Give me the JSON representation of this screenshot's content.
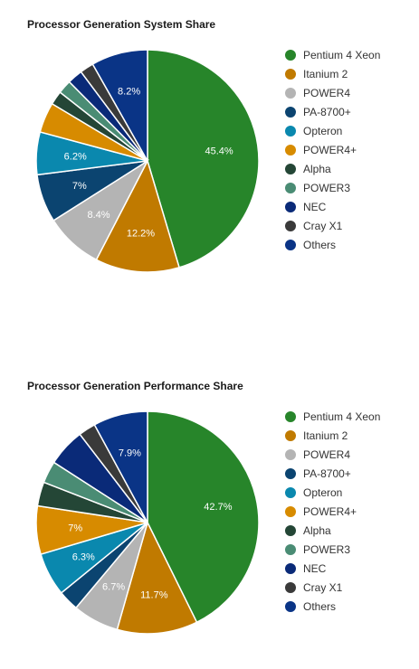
{
  "chart_data": [
    {
      "type": "pie",
      "title": "Processor Generation System Share",
      "legend_position": "right",
      "categories": [
        "Pentium 4 Xeon",
        "Itanium 2",
        "POWER4",
        "PA-8700+",
        "Opteron",
        "POWER4+",
        "Alpha",
        "POWER3",
        "NEC",
        "Cray X1",
        "Others"
      ],
      "values": [
        45.4,
        12.2,
        8.4,
        7.0,
        6.2,
        4.4,
        2.0,
        2.0,
        2.2,
        2.0,
        8.2
      ],
      "labels": [
        "45.4%",
        "12.2%",
        "8.4%",
        "7%",
        "6.2%",
        "",
        "",
        "",
        "",
        "",
        "8.2%"
      ],
      "colors": [
        "#27852a",
        "#c07a00",
        "#b4b4b4",
        "#0b4470",
        "#0a88ae",
        "#d78b00",
        "#244636",
        "#4a8c74",
        "#0a2a78",
        "#3a3a3a",
        "#0a3486"
      ]
    },
    {
      "type": "pie",
      "title": "Processor Generation Performance Share",
      "legend_position": "right",
      "categories": [
        "Pentium 4 Xeon",
        "Itanium 2",
        "POWER4",
        "PA-8700+",
        "Opteron",
        "POWER4+",
        "Alpha",
        "POWER3",
        "NEC",
        "Cray X1",
        "Others"
      ],
      "values": [
        42.7,
        11.7,
        6.7,
        3.0,
        6.3,
        7.0,
        3.5,
        3.2,
        5.5,
        2.5,
        7.9
      ],
      "labels": [
        "42.7%",
        "11.7%",
        "6.7%",
        "",
        "6.3%",
        "7%",
        "",
        "",
        "",
        "",
        "7.9%"
      ],
      "colors": [
        "#27852a",
        "#c07a00",
        "#b4b4b4",
        "#0b4470",
        "#0a88ae",
        "#d78b00",
        "#244636",
        "#4a8c74",
        "#0a2a78",
        "#3a3a3a",
        "#0a3486"
      ]
    }
  ]
}
